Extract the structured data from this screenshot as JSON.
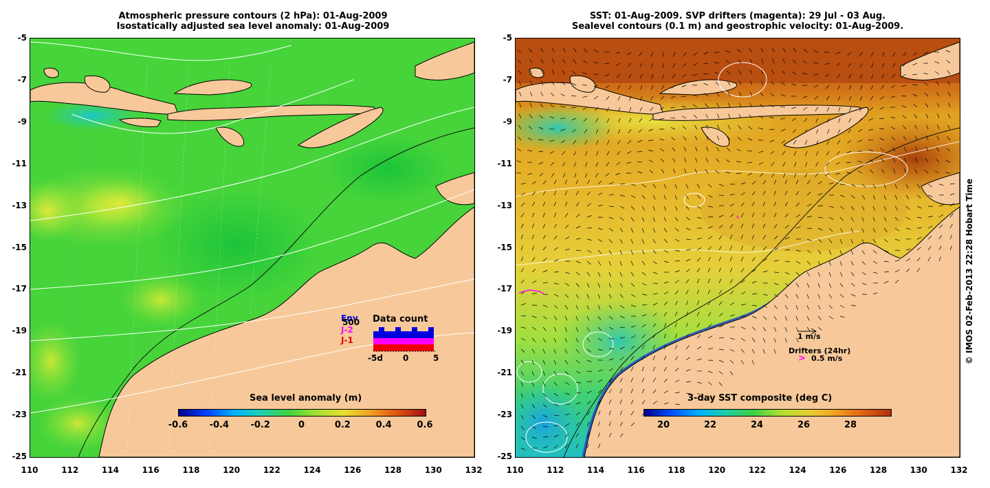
{
  "left_panel": {
    "title_line1": "Atmospheric pressure contours (2 hPa): 01-Aug-2009",
    "title_line2": "Isostatically adjusted sea level anomaly: 01-Aug-2009",
    "colorbar_title": "Sea level anomaly (m)",
    "colorbar_ticks": [
      "-0.6",
      "-0.4",
      "-0.2",
      "0",
      "0.2",
      "0.4",
      "0.6"
    ],
    "inset": {
      "title": "Data count",
      "legend": [
        "Env",
        "J-2",
        "J-1"
      ],
      "legend_colors": [
        "#0000dd",
        "#ff00ff",
        "#ee0000"
      ],
      "count_label": "500",
      "x_ticks": [
        "-5d",
        "0",
        "5"
      ]
    }
  },
  "right_panel": {
    "title_line1": "SST: 01-Aug-2009. SVP drifters (magenta): 29 Jul - 03 Aug.",
    "title_line2": "Sealevel contours (0.1 m) and geostrophic velocity: 01-Aug-2009.",
    "colorbar_title": "3-day SST composite (deg C)",
    "colorbar_ticks": [
      "20",
      "22",
      "24",
      "26",
      "28"
    ],
    "velocity_key": "1 m/s",
    "drifters_key": "Drifters (24hr)",
    "drifter_speed": "0.5 m/s",
    "drifter_symbol": ">"
  },
  "axes": {
    "y_ticks": [
      "-5",
      "-7",
      "-9",
      "-11",
      "-13",
      "-15",
      "-17",
      "-19",
      "-21",
      "-23",
      "-25"
    ],
    "x_ticks": [
      "110",
      "112",
      "114",
      "116",
      "118",
      "120",
      "122",
      "124",
      "126",
      "128",
      "130",
      "132"
    ]
  },
  "credit": "© IMOS 02-Feb-2013 22:28 Hobart Time",
  "colors": {
    "land": "#f7c99a",
    "ocean_green": "#3fd23f",
    "sst_warm": "#e08a1e",
    "sst_hot": "#b44a10",
    "sst_yellow": "#e6d83a",
    "drifter_magenta": "#ff00ff"
  }
}
